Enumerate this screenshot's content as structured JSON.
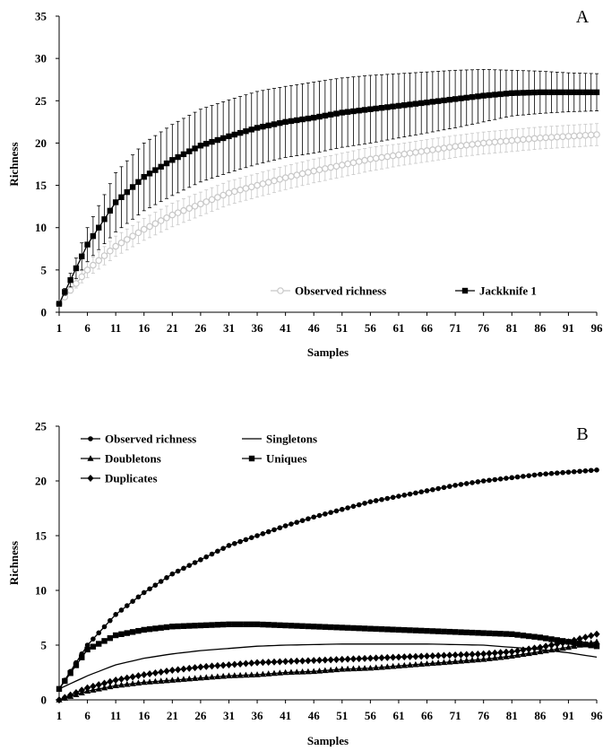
{
  "chart_data": [
    {
      "type": "line",
      "panel_label": "A",
      "xlabel": "Samples",
      "ylabel": "Richness",
      "ylim": [
        0,
        35
      ],
      "yticks": [
        0,
        5,
        10,
        15,
        20,
        25,
        30,
        35
      ],
      "xticks": [
        1,
        6,
        11,
        16,
        21,
        26,
        31,
        36,
        41,
        46,
        51,
        56,
        61,
        66,
        71,
        76,
        81,
        86,
        91,
        96
      ],
      "xlim": [
        1,
        96
      ],
      "legend_position": "bottom-right",
      "series": [
        {
          "name": "Observed richness",
          "color": "#c8c8c8",
          "marker": "circle-open",
          "error_bars": true,
          "x": [
            1,
            6,
            11,
            16,
            21,
            26,
            31,
            36,
            41,
            46,
            51,
            56,
            61,
            66,
            71,
            76,
            81,
            86,
            91,
            96
          ],
          "values": [
            1.0,
            5.0,
            7.8,
            9.8,
            11.5,
            12.8,
            14.1,
            15.0,
            15.9,
            16.7,
            17.4,
            18.1,
            18.6,
            19.1,
            19.6,
            20.0,
            20.3,
            20.6,
            20.8,
            21.0
          ],
          "error": [
            0.0,
            0.9,
            1.2,
            1.3,
            1.4,
            1.4,
            1.4,
            1.4,
            1.4,
            1.4,
            1.4,
            1.4,
            1.3,
            1.3,
            1.3,
            1.3,
            1.3,
            1.3,
            1.3,
            1.3
          ]
        },
        {
          "name": "Jackknife 1",
          "color": "#000000",
          "marker": "square",
          "error_bars": true,
          "x": [
            1,
            6,
            11,
            16,
            21,
            26,
            31,
            36,
            41,
            46,
            51,
            56,
            61,
            66,
            71,
            76,
            81,
            86,
            91,
            96
          ],
          "values": [
            1.0,
            8.0,
            13.0,
            16.0,
            18.0,
            19.7,
            20.8,
            21.8,
            22.5,
            23.0,
            23.6,
            24.0,
            24.4,
            24.8,
            25.2,
            25.6,
            25.9,
            26.0,
            26.0,
            26.0
          ],
          "error": [
            0.0,
            2.0,
            3.5,
            4.0,
            4.2,
            4.3,
            4.3,
            4.3,
            4.2,
            4.2,
            4.1,
            4.0,
            3.8,
            3.6,
            3.4,
            3.1,
            2.7,
            2.5,
            2.3,
            2.2
          ]
        }
      ]
    },
    {
      "type": "line",
      "panel_label": "B",
      "xlabel": "Samples",
      "ylabel": "Richness",
      "ylim": [
        0,
        25
      ],
      "yticks": [
        0,
        5,
        10,
        15,
        20,
        25
      ],
      "xticks": [
        1,
        6,
        11,
        16,
        21,
        26,
        31,
        36,
        41,
        46,
        51,
        56,
        61,
        66,
        71,
        76,
        81,
        86,
        91,
        96
      ],
      "xlim": [
        1,
        96
      ],
      "legend_position": "top-left",
      "series": [
        {
          "name": "Observed richness",
          "color": "#000000",
          "marker": "circle",
          "x": [
            1,
            6,
            11,
            16,
            21,
            26,
            31,
            36,
            41,
            46,
            51,
            56,
            61,
            66,
            71,
            76,
            81,
            86,
            91,
            96
          ],
          "values": [
            1.0,
            5.0,
            7.8,
            9.8,
            11.5,
            12.8,
            14.1,
            15.0,
            15.9,
            16.7,
            17.4,
            18.1,
            18.6,
            19.1,
            19.6,
            20.0,
            20.3,
            20.6,
            20.8,
            21.0
          ]
        },
        {
          "name": "Singletons",
          "color": "#000000",
          "marker": "none",
          "x": [
            1,
            6,
            11,
            16,
            21,
            26,
            31,
            36,
            41,
            46,
            51,
            56,
            61,
            66,
            71,
            76,
            81,
            86,
            91,
            96
          ],
          "values": [
            1.0,
            2.2,
            3.2,
            3.8,
            4.2,
            4.5,
            4.7,
            4.9,
            5.0,
            5.05,
            5.1,
            5.1,
            5.1,
            5.1,
            5.05,
            5.0,
            4.8,
            4.6,
            4.3,
            3.9
          ]
        },
        {
          "name": "Doubletons",
          "color": "#000000",
          "marker": "triangle",
          "x": [
            1,
            6,
            11,
            16,
            21,
            26,
            31,
            36,
            41,
            46,
            51,
            56,
            61,
            66,
            71,
            76,
            81,
            86,
            91,
            96
          ],
          "values": [
            0.0,
            0.8,
            1.3,
            1.6,
            1.8,
            2.0,
            2.2,
            2.3,
            2.5,
            2.6,
            2.8,
            2.9,
            3.1,
            3.3,
            3.5,
            3.7,
            4.0,
            4.4,
            4.8,
            5.3
          ]
        },
        {
          "name": "Uniques",
          "color": "#000000",
          "marker": "square",
          "x": [
            1,
            6,
            11,
            16,
            21,
            26,
            31,
            36,
            41,
            46,
            51,
            56,
            61,
            66,
            71,
            76,
            81,
            86,
            91,
            96
          ],
          "values": [
            1.0,
            4.6,
            5.9,
            6.4,
            6.7,
            6.8,
            6.9,
            6.9,
            6.8,
            6.7,
            6.6,
            6.5,
            6.4,
            6.3,
            6.2,
            6.1,
            6.0,
            5.7,
            5.3,
            4.9
          ]
        },
        {
          "name": "Duplicates",
          "color": "#000000",
          "marker": "diamond",
          "x": [
            1,
            6,
            11,
            16,
            21,
            26,
            31,
            36,
            41,
            46,
            51,
            56,
            61,
            66,
            71,
            76,
            81,
            86,
            91,
            96
          ],
          "values": [
            0.0,
            1.1,
            1.8,
            2.3,
            2.7,
            3.0,
            3.2,
            3.4,
            3.5,
            3.6,
            3.7,
            3.8,
            3.9,
            4.0,
            4.1,
            4.2,
            4.4,
            4.8,
            5.3,
            6.0
          ]
        }
      ]
    }
  ]
}
